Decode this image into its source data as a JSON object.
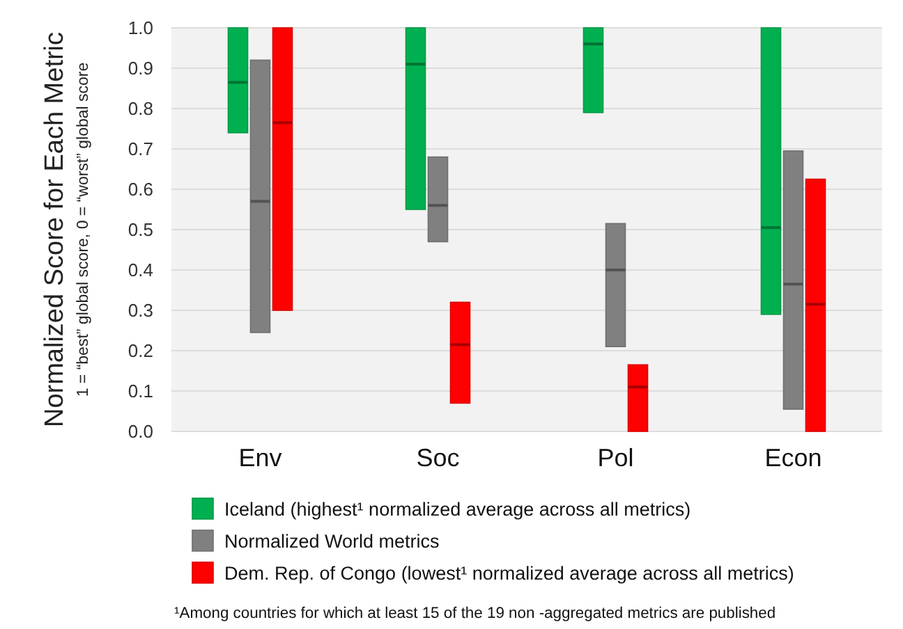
{
  "chart_data": {
    "type": "box",
    "ylabel": "Normalized Score for Each Metric",
    "subtitle": "1 = “best” global score, 0 = “worst” global score",
    "categories": [
      "Env",
      "Soc",
      "Pol",
      "Econ"
    ],
    "series": [
      {
        "name": "Iceland (highest¹ normalized average across all metrics)",
        "color": "#00b050",
        "boxes": [
          {
            "low": 0.74,
            "q1": 0.74,
            "median": 0.865,
            "q3": 1.0,
            "high": 1.0
          },
          {
            "low": 0.55,
            "q1": 0.55,
            "median": 0.91,
            "q3": 1.0,
            "high": 1.0
          },
          {
            "low": 0.79,
            "q1": 0.79,
            "median": 0.96,
            "q3": 1.0,
            "high": 1.0
          },
          {
            "low": 0.29,
            "q1": 0.29,
            "median": 0.505,
            "q3": 1.0,
            "high": 1.0
          }
        ]
      },
      {
        "name": "Normalized World metrics",
        "color": "#808080",
        "boxes": [
          {
            "low": 0.245,
            "q1": 0.245,
            "median": 0.57,
            "q3": 0.92,
            "high": 0.92
          },
          {
            "low": 0.47,
            "q1": 0.47,
            "median": 0.56,
            "q3": 0.68,
            "high": 0.68
          },
          {
            "low": 0.21,
            "q1": 0.21,
            "median": 0.4,
            "q3": 0.515,
            "high": 0.515
          },
          {
            "low": 0.055,
            "q1": 0.055,
            "median": 0.365,
            "q3": 0.695,
            "high": 0.695
          }
        ]
      },
      {
        "name": "Dem. Rep. of Congo (lowest¹ normalized average across all metrics)",
        "color": "#ff0000",
        "boxes": [
          {
            "low": 0.3,
            "q1": 0.3,
            "median": 0.765,
            "q3": 1.0,
            "high": 1.0
          },
          {
            "low": 0.07,
            "q1": 0.07,
            "median": 0.215,
            "q3": 0.32,
            "high": 0.32
          },
          {
            "low": 0.0,
            "q1": 0.0,
            "median": 0.11,
            "q3": 0.165,
            "high": 0.165
          },
          {
            "low": 0.0,
            "q1": 0.0,
            "median": 0.315,
            "q3": 0.625,
            "high": 0.625
          }
        ]
      }
    ],
    "ylim": [
      0,
      1
    ],
    "yticks": [
      {
        "value": 0,
        "label": "0.0"
      },
      {
        "value": 0.1,
        "label": "0.1"
      },
      {
        "value": 0.2,
        "label": "0.2"
      },
      {
        "value": 0.3,
        "label": "0.3"
      },
      {
        "value": 0.4,
        "label": "0.4"
      },
      {
        "value": 0.5,
        "label": "0.5"
      },
      {
        "value": 0.6,
        "label": "0.6"
      },
      {
        "value": 0.7,
        "label": "0.7"
      },
      {
        "value": 0.8,
        "label": "0.8"
      },
      {
        "value": 0.9,
        "label": "0.9"
      },
      {
        "value": 1,
        "label": "1.0"
      }
    ],
    "grid": "y",
    "legend": "bottom",
    "annotations": [
      "¹Among countries for which at least 15 of the 19 non -aggregated metrics are published"
    ]
  }
}
